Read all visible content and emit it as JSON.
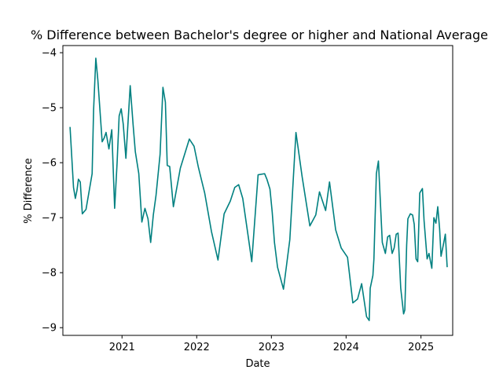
{
  "chart_data": {
    "type": "line",
    "title": "% Difference between Bachelor's degree or higher and National Average",
    "xlabel": "Date",
    "ylabel": "% Difference",
    "xlim": [
      "2020-03-18",
      "2025-06-05"
    ],
    "ylim": [
      -9.14,
      -3.87
    ],
    "x_ticks": [
      {
        "date": "2021-01-01",
        "label": "2021"
      },
      {
        "date": "2022-01-01",
        "label": "2022"
      },
      {
        "date": "2023-01-01",
        "label": "2023"
      },
      {
        "date": "2024-01-01",
        "label": "2024"
      },
      {
        "date": "2025-01-01",
        "label": "2025"
      }
    ],
    "y_ticks": [
      {
        "value": -9,
        "label": "−9"
      },
      {
        "value": -8,
        "label": "−8"
      },
      {
        "value": -7,
        "label": "−7"
      },
      {
        "value": -6,
        "label": "−6"
      },
      {
        "value": -5,
        "label": "−5"
      },
      {
        "value": -4,
        "label": "−4"
      }
    ],
    "grid": false,
    "series": [
      {
        "color": "#008080",
        "x": [
          "2020-04-22",
          "2020-05-09",
          "2020-05-18",
          "2020-05-26",
          "2020-06-02",
          "2020-06-11",
          "2020-06-21",
          "2020-07-09",
          "2020-08-08",
          "2020-08-15",
          "2020-08-26",
          "2020-09-05",
          "2020-09-26",
          "2020-10-06",
          "2020-10-15",
          "2020-10-29",
          "2020-11-12",
          "2020-11-26",
          "2020-12-08",
          "2020-12-18",
          "2020-12-28",
          "2021-01-07",
          "2021-01-20",
          "2021-02-10",
          "2021-02-24",
          "2021-03-07",
          "2021-03-24",
          "2021-04-08",
          "2021-04-23",
          "2021-05-08",
          "2021-05-21",
          "2021-06-03",
          "2021-06-16",
          "2021-07-06",
          "2021-07-20",
          "2021-08-01",
          "2021-08-10",
          "2021-08-22",
          "2021-09-09",
          "2021-10-13",
          "2021-11-26",
          "2021-12-19",
          "2022-01-09",
          "2022-02-09",
          "2022-03-14",
          "2022-04-15",
          "2022-05-15",
          "2022-06-14",
          "2022-07-06",
          "2022-07-25",
          "2022-08-14",
          "2022-09-10",
          "2022-09-27",
          "2022-10-28",
          "2022-11-29",
          "2022-12-10",
          "2022-12-25",
          "2023-01-05",
          "2023-01-16",
          "2023-01-31",
          "2023-03-01",
          "2023-04-01",
          "2023-05-01",
          "2023-05-31",
          "2023-07-08",
          "2023-08-06",
          "2023-08-24",
          "2023-09-23",
          "2023-10-12",
          "2023-11-11",
          "2023-12-08",
          "2024-01-08",
          "2024-02-03",
          "2024-02-26",
          "2024-03-17",
          "2024-04-10",
          "2024-04-23",
          "2024-04-28",
          "2024-05-11",
          "2024-05-16",
          "2024-05-28",
          "2024-06-07",
          "2024-06-26",
          "2024-07-11",
          "2024-07-22",
          "2024-08-01",
          "2024-08-13",
          "2024-08-23",
          "2024-09-02",
          "2024-09-11",
          "2024-09-24",
          "2024-10-08",
          "2024-10-14",
          "2024-10-23",
          "2024-10-29",
          "2024-11-10",
          "2024-11-21",
          "2024-11-29",
          "2024-12-08",
          "2024-12-16",
          "2024-12-26",
          "2025-01-08",
          "2025-01-16",
          "2025-01-31",
          "2025-02-09",
          "2025-02-23",
          "2025-03-05",
          "2025-03-15",
          "2025-03-24",
          "2025-04-02",
          "2025-04-09",
          "2025-04-20",
          "2025-04-30",
          "2025-05-09"
        ],
        "y": [
          -5.35,
          -6.45,
          -6.65,
          -6.5,
          -6.3,
          -6.35,
          -6.93,
          -6.85,
          -6.2,
          -5.05,
          -4.1,
          -4.5,
          -5.62,
          -5.55,
          -5.45,
          -5.75,
          -5.4,
          -6.83,
          -6.0,
          -5.15,
          -5.02,
          -5.3,
          -5.92,
          -4.6,
          -5.3,
          -5.8,
          -6.2,
          -7.08,
          -6.83,
          -7.02,
          -7.45,
          -6.95,
          -6.6,
          -5.85,
          -4.63,
          -4.9,
          -6.05,
          -6.07,
          -6.8,
          -6.1,
          -5.57,
          -5.7,
          -6.08,
          -6.55,
          -7.25,
          -7.77,
          -6.93,
          -6.7,
          -6.45,
          -6.4,
          -6.65,
          -7.35,
          -7.8,
          -6.22,
          -6.2,
          -6.3,
          -6.48,
          -6.9,
          -7.45,
          -7.9,
          -8.3,
          -7.4,
          -5.45,
          -6.25,
          -7.15,
          -6.95,
          -6.53,
          -6.87,
          -6.35,
          -7.22,
          -7.55,
          -7.72,
          -8.55,
          -8.48,
          -8.2,
          -8.8,
          -8.87,
          -8.28,
          -8.05,
          -7.75,
          -6.2,
          -5.97,
          -7.45,
          -7.65,
          -7.35,
          -7.32,
          -7.65,
          -7.55,
          -7.3,
          -7.28,
          -8.28,
          -8.75,
          -8.68,
          -7.5,
          -7.02,
          -6.93,
          -6.95,
          -7.12,
          -7.75,
          -7.8,
          -6.55,
          -6.47,
          -7.05,
          -7.75,
          -7.65,
          -7.92,
          -7.0,
          -7.1,
          -6.8,
          -7.2,
          -7.7,
          -7.5,
          -7.3,
          -7.9
        ]
      }
    ]
  }
}
